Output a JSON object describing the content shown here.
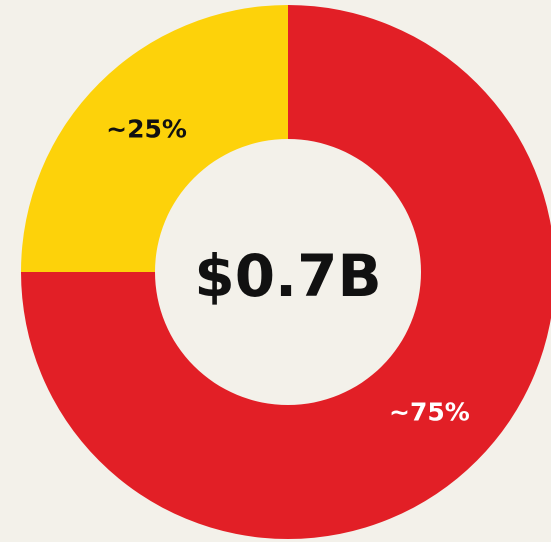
{
  "chart_data": {
    "type": "donut",
    "center_label": "$0.7B",
    "values": [
      75,
      25
    ],
    "value_labels": [
      "~75%",
      "~25%"
    ],
    "colors": [
      "#e21f26",
      "#fdd20a"
    ],
    "label_colors": [
      "#ffffff",
      "#111111"
    ]
  }
}
